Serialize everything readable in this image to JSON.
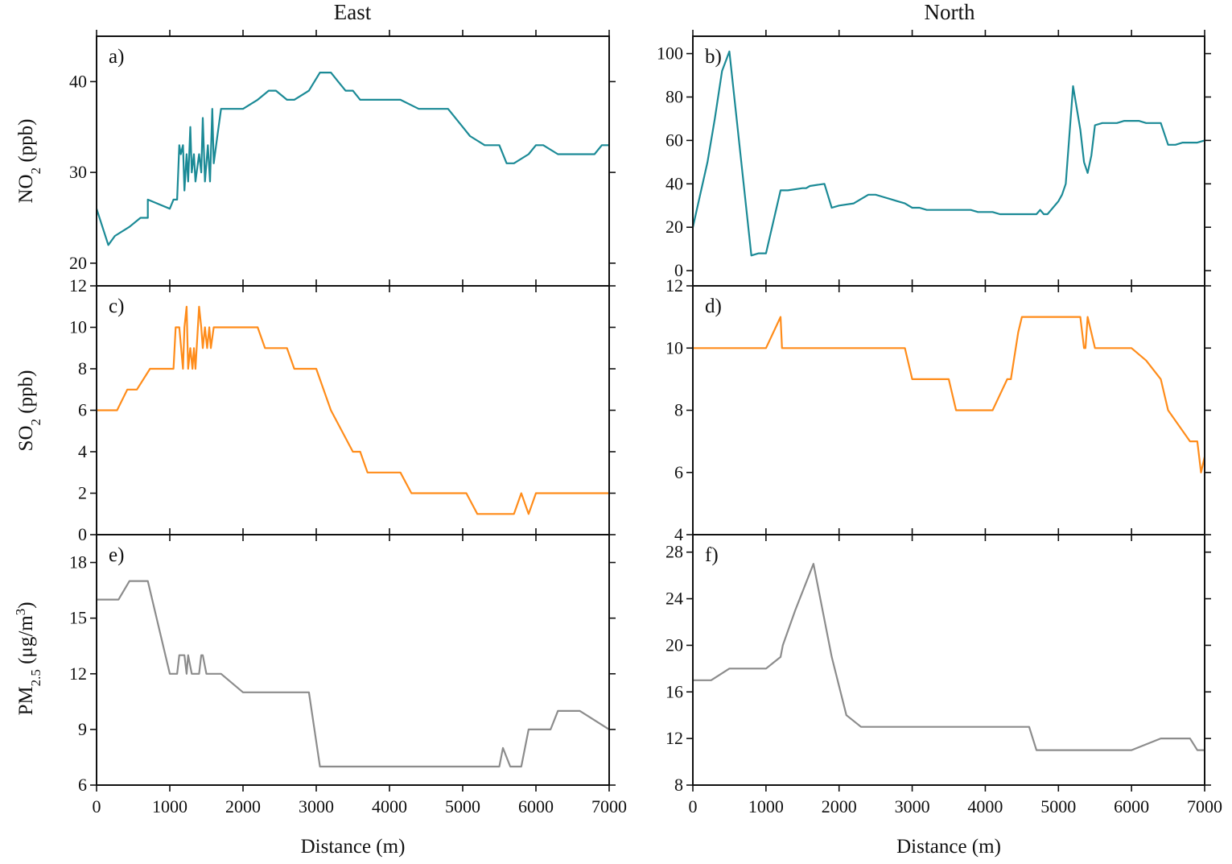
{
  "columns": [
    "East",
    "North"
  ],
  "colors": {
    "no2": "#1b8a96",
    "so2": "#ff8c1a",
    "pm25": "#8c8c8c"
  },
  "ylabels": {
    "no2": {
      "main": "NO",
      "sub": "2",
      "unit": " (ppb)"
    },
    "so2": {
      "main": "SO",
      "sub": "2",
      "unit": " (ppb)"
    },
    "pm25": {
      "main": "PM",
      "sub": "2.5",
      "unit": " (μg/m",
      "sup": "3",
      "close": ")"
    }
  },
  "chart_data": [
    {
      "panel": "a)",
      "column": "East",
      "type": "line",
      "series": [
        {
          "name": "NO2",
          "color": "#1b8a96",
          "x": [
            0,
            160,
            250,
            450,
            600,
            700,
            700,
            1000,
            1050,
            1100,
            1130,
            1150,
            1180,
            1200,
            1230,
            1250,
            1280,
            1300,
            1330,
            1350,
            1400,
            1430,
            1450,
            1480,
            1520,
            1550,
            1580,
            1600,
            1650,
            1700,
            2000,
            2200,
            2350,
            2450,
            2600,
            2700,
            2900,
            3050,
            3200,
            3300,
            3400,
            3500,
            3600,
            3800,
            4000,
            4150,
            4400,
            4500,
            4800,
            5000,
            5100,
            5300,
            5500,
            5600,
            5700,
            5900,
            6000,
            6100,
            6300,
            6500,
            6700,
            6800,
            6900,
            7000
          ],
          "y": [
            26,
            22,
            23,
            24,
            25,
            25,
            27,
            26,
            27,
            27,
            33,
            32,
            33,
            28,
            32,
            29,
            35,
            30,
            32,
            29,
            32,
            30,
            36,
            29,
            33,
            29,
            37,
            31,
            34,
            37,
            37,
            38,
            39,
            39,
            38,
            38,
            39,
            41,
            41,
            40,
            39,
            39,
            38,
            38,
            38,
            38,
            37,
            37,
            37,
            35,
            34,
            33,
            33,
            31,
            31,
            32,
            33,
            33,
            32,
            32,
            32,
            32,
            33,
            33
          ]
        }
      ],
      "xlim": [
        0,
        7000
      ],
      "ylim": [
        17.5,
        45
      ],
      "yticks": [
        20,
        30,
        40
      ],
      "xticks": [],
      "xlabel": ""
    },
    {
      "panel": "b)",
      "column": "North",
      "type": "line",
      "series": [
        {
          "name": "NO2",
          "color": "#1b8a96",
          "x": [
            0,
            100,
            200,
            300,
            400,
            500,
            800,
            900,
            1000,
            1200,
            1300,
            1500,
            1550,
            1600,
            1800,
            1900,
            2000,
            2200,
            2300,
            2400,
            2500,
            2600,
            2700,
            2800,
            2900,
            3000,
            3100,
            3200,
            3300,
            3500,
            3600,
            3700,
            3800,
            3900,
            4000,
            4100,
            4200,
            4300,
            4400,
            4500,
            4600,
            4650,
            4700,
            4750,
            4800,
            4850,
            4900,
            5000,
            5050,
            5100,
            5200,
            5300,
            5350,
            5400,
            5450,
            5500,
            5600,
            5800,
            5900,
            6000,
            6100,
            6200,
            6300,
            6400,
            6500,
            6600,
            6700,
            6800,
            6900,
            7000
          ],
          "y": [
            20,
            35,
            50,
            70,
            92,
            101,
            7,
            8,
            8,
            37,
            37,
            38,
            38,
            39,
            40,
            29,
            30,
            31,
            33,
            35,
            35,
            34,
            33,
            32,
            31,
            29,
            29,
            28,
            28,
            28,
            28,
            28,
            28,
            27,
            27,
            27,
            26,
            26,
            26,
            26,
            26,
            26,
            26,
            28,
            26,
            26,
            28,
            32,
            35,
            40,
            85,
            65,
            50,
            45,
            53,
            67,
            68,
            68,
            69,
            69,
            69,
            68,
            68,
            68,
            58,
            58,
            59,
            59,
            59,
            60
          ],
          "y_note": ""
        }
      ],
      "xlim": [
        0,
        7000
      ],
      "ylim": [
        -7,
        108
      ],
      "yticks": [
        0,
        20,
        40,
        60,
        80,
        100
      ],
      "xticks": [],
      "xlabel": ""
    },
    {
      "panel": "c)",
      "column": "East",
      "type": "line",
      "series": [
        {
          "name": "SO2",
          "color": "#ff8c1a",
          "x": [
            0,
            280,
            420,
            550,
            730,
            1050,
            1080,
            1130,
            1180,
            1200,
            1230,
            1250,
            1280,
            1310,
            1330,
            1350,
            1400,
            1430,
            1450,
            1480,
            1510,
            1540,
            1560,
            1600,
            1650,
            1700,
            2200,
            2300,
            2600,
            2700,
            2900,
            3000,
            3200,
            3500,
            3600,
            3700,
            3800,
            4000,
            4150,
            4300,
            4500,
            5000,
            5050,
            5200,
            5400,
            5600,
            5700,
            5800,
            5900,
            6000,
            6100,
            6500,
            7000
          ],
          "y": [
            6,
            6,
            7,
            7,
            8,
            8,
            10,
            10,
            8,
            10,
            11,
            8,
            9,
            8,
            9,
            8,
            11,
            10,
            9,
            10,
            9,
            10,
            9,
            10,
            10,
            10,
            10,
            9,
            9,
            8,
            8,
            8,
            6,
            4,
            4,
            3,
            3,
            3,
            3,
            2,
            2,
            2,
            2,
            1,
            1,
            1,
            1,
            2,
            1,
            2,
            2,
            2,
            2
          ]
        }
      ],
      "xlim": [
        0,
        7000
      ],
      "ylim": [
        0,
        12
      ],
      "yticks": [
        0,
        2,
        4,
        6,
        8,
        10,
        12
      ],
      "xticks": [],
      "xlabel": ""
    },
    {
      "panel": "d)",
      "column": "North",
      "type": "line",
      "series": [
        {
          "name": "SO2",
          "color": "#ff8c1a",
          "x": [
            0,
            200,
            400,
            600,
            800,
            1000,
            1200,
            1220,
            1400,
            1600,
            1800,
            2000,
            2500,
            2900,
            3000,
            3200,
            3300,
            3500,
            3600,
            3700,
            3800,
            4000,
            4100,
            4200,
            4300,
            4350,
            4450,
            4500,
            4700,
            5000,
            5100,
            5200,
            5300,
            5350,
            5370,
            5400,
            5500,
            5600,
            5700,
            5800,
            5900,
            6000,
            6200,
            6400,
            6500,
            6800,
            6900,
            6950,
            7000
          ],
          "y": [
            10,
            10,
            10,
            10,
            10,
            10,
            11,
            10,
            10,
            10,
            10,
            10,
            10,
            10,
            9,
            9,
            9,
            9,
            8,
            8,
            8,
            8,
            8,
            8.5,
            9,
            9,
            10.5,
            11,
            11,
            11,
            11,
            11,
            11,
            10,
            10,
            11,
            10,
            10,
            10,
            10,
            10,
            10,
            9.6,
            9,
            8,
            7,
            7,
            6,
            6.5
          ]
        }
      ],
      "xlim": [
        0,
        7000
      ],
      "ylim": [
        4,
        12
      ],
      "yticks": [
        4,
        6,
        8,
        10,
        12
      ],
      "xticks": [],
      "xlabel": ""
    },
    {
      "panel": "e)",
      "column": "East",
      "type": "line",
      "series": [
        {
          "name": "PM2.5",
          "color": "#8c8c8c",
          "x": [
            0,
            300,
            450,
            600,
            700,
            1000,
            1100,
            1130,
            1200,
            1230,
            1250,
            1300,
            1350,
            1400,
            1430,
            1450,
            1500,
            1550,
            1600,
            1700,
            2000,
            2200,
            2900,
            3050,
            3300,
            3600,
            4000,
            4500,
            5000,
            5500,
            5550,
            5650,
            5700,
            5800,
            5900,
            6100,
            6200,
            6300,
            6500,
            6600,
            7000
          ],
          "y": [
            16,
            16,
            17,
            17,
            17,
            12,
            12,
            13,
            13,
            12,
            13,
            12,
            12,
            12,
            13,
            13,
            12,
            12,
            12,
            12,
            11,
            11,
            11,
            7,
            7,
            7,
            7,
            7,
            7,
            7,
            8,
            7,
            7,
            7,
            9,
            9,
            9,
            10,
            10,
            10,
            9
          ]
        }
      ],
      "xlim": [
        0,
        7000
      ],
      "ylim": [
        6,
        19.5
      ],
      "yticks": [
        6,
        9,
        12,
        15,
        18
      ],
      "xticks": [
        0,
        1000,
        2000,
        3000,
        4000,
        5000,
        6000,
        7000
      ],
      "xlabel": "Distance (m)"
    },
    {
      "panel": "f)",
      "column": "North",
      "type": "line",
      "series": [
        {
          "name": "PM2.5",
          "color": "#8c8c8c",
          "x": [
            0,
            250,
            500,
            1000,
            1100,
            1200,
            1230,
            1400,
            1650,
            1900,
            2100,
            2300,
            2500,
            3000,
            4000,
            4600,
            4700,
            5000,
            5500,
            6000,
            6400,
            6700,
            6800,
            6900,
            7000
          ],
          "y": [
            17,
            17,
            18,
            18,
            18.5,
            19,
            20,
            23,
            27,
            19,
            14,
            13,
            13,
            13,
            13,
            13,
            11,
            11,
            11,
            11,
            12,
            12,
            12,
            11,
            11
          ]
        }
      ],
      "xlim": [
        0,
        7000
      ],
      "ylim": [
        8,
        29.5
      ],
      "yticks": [
        8,
        12,
        16,
        20,
        24,
        28
      ],
      "xticks": [
        0,
        1000,
        2000,
        3000,
        4000,
        5000,
        6000,
        7000
      ],
      "xlabel": "Distance (m)"
    }
  ]
}
